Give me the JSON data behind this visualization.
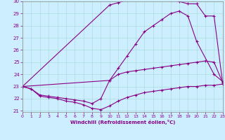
{
  "xlabel": "Windchill (Refroidissement éolien,°C)",
  "xlim": [
    0,
    23
  ],
  "ylim": [
    21,
    30
  ],
  "xticks": [
    0,
    1,
    2,
    3,
    4,
    5,
    6,
    7,
    8,
    9,
    10,
    11,
    12,
    13,
    14,
    15,
    16,
    17,
    18,
    19,
    20,
    21,
    22,
    23
  ],
  "yticks": [
    21,
    22,
    23,
    24,
    25,
    26,
    27,
    28,
    29,
    30
  ],
  "bg_color": "#cceeff",
  "line_color": "#880088",
  "grid_color": "#aadddd",
  "line1_x": [
    0,
    1,
    2,
    3,
    4,
    5,
    6,
    7,
    8,
    9,
    10,
    11,
    12,
    13,
    14,
    15,
    16,
    17,
    18,
    19,
    20,
    21,
    22,
    23
  ],
  "line1_y": [
    23.0,
    22.8,
    22.2,
    22.1,
    22.0,
    21.8,
    21.7,
    21.5,
    21.2,
    21.1,
    21.4,
    21.8,
    22.1,
    22.3,
    22.5,
    22.6,
    22.7,
    22.8,
    22.9,
    23.0,
    23.0,
    23.1,
    23.1,
    23.2
  ],
  "line2_x": [
    0,
    1,
    2,
    3,
    4,
    5,
    6,
    7,
    8,
    9,
    10,
    11,
    12,
    13,
    14,
    15,
    16,
    17,
    18,
    19,
    20,
    21,
    22,
    23
  ],
  "line2_y": [
    23.0,
    22.8,
    22.3,
    22.2,
    22.1,
    22.0,
    21.9,
    21.8,
    21.6,
    22.0,
    23.5,
    24.0,
    24.2,
    24.3,
    24.4,
    24.5,
    24.6,
    24.7,
    24.8,
    24.9,
    25.0,
    25.1,
    25.0,
    23.3
  ],
  "line3_x": [
    0,
    10,
    11,
    12,
    13,
    14,
    15,
    16,
    17,
    18,
    19,
    20,
    22,
    23
  ],
  "line3_y": [
    23.0,
    23.5,
    24.5,
    25.5,
    26.5,
    27.5,
    28.0,
    28.5,
    29.0,
    29.2,
    28.8,
    26.7,
    24.0,
    23.4
  ],
  "line4_x": [
    0,
    10,
    11,
    12,
    13,
    14,
    15,
    16,
    17,
    18,
    19,
    20,
    21,
    22,
    23
  ],
  "line4_y": [
    23.0,
    29.7,
    29.9,
    30.1,
    30.3,
    30.4,
    30.5,
    30.4,
    30.1,
    30.0,
    29.8,
    29.8,
    28.8,
    28.8,
    23.2
  ]
}
